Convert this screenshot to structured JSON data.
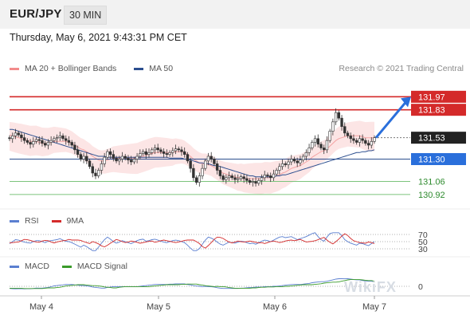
{
  "header": {
    "pair": "EUR/JPY",
    "timeframe": "30 MIN"
  },
  "timestamp": "Thursday, May 6, 2021 9:43:31 PM CET",
  "credit": "Research © 2021 Trading Central",
  "legends": {
    "price": [
      {
        "label": "MA 20 + Bollinger Bands",
        "color": "#f28b8b"
      },
      {
        "label": "MA 50",
        "color": "#2c4f8f"
      }
    ],
    "rsi": [
      {
        "label": "RSI",
        "color": "#5b7fd0"
      },
      {
        "label": "9MA",
        "color": "#d42a2a"
      }
    ],
    "macd": [
      {
        "label": "MACD",
        "color": "#5b7fd0"
      },
      {
        "label": "MACD Signal",
        "color": "#3a9b2a"
      }
    ]
  },
  "watermark": "WikiFX",
  "chart_data": {
    "type": "candlestick",
    "title": "EUR/JPY 30 MIN",
    "x_ticks": [
      "May 4",
      "May 5",
      "May 6",
      "May 7"
    ],
    "ylim": [
      130.85,
      132.05
    ],
    "levels": [
      {
        "value": 131.97,
        "label": "131.97",
        "kind": "resistance"
      },
      {
        "value": 131.83,
        "label": "131.83",
        "kind": "resistance"
      },
      {
        "value": 131.53,
        "label": "131.53",
        "kind": "last_price"
      },
      {
        "value": 131.3,
        "label": "131.30",
        "kind": "pivot"
      },
      {
        "value": 131.06,
        "label": "131.06",
        "kind": "support"
      },
      {
        "value": 130.92,
        "label": "130.92",
        "kind": "support"
      }
    ],
    "price_closes": [
      131.52,
      131.55,
      131.58,
      131.56,
      131.53,
      131.5,
      131.48,
      131.46,
      131.49,
      131.51,
      131.5,
      131.47,
      131.45,
      131.48,
      131.5,
      131.52,
      131.53,
      131.55,
      131.52,
      131.5,
      131.48,
      131.45,
      131.4,
      131.35,
      131.3,
      131.33,
      131.28,
      131.22,
      131.15,
      131.12,
      131.18,
      131.25,
      131.32,
      131.38,
      131.35,
      131.31,
      131.28,
      131.3,
      131.33,
      131.31,
      131.29,
      131.27,
      131.3,
      131.33,
      131.36,
      131.38,
      131.35,
      131.37,
      131.4,
      131.42,
      131.4,
      131.38,
      131.36,
      131.35,
      131.37,
      131.39,
      131.41,
      131.4,
      131.38,
      131.35,
      131.28,
      131.2,
      131.1,
      131.05,
      131.12,
      131.2,
      131.28,
      131.33,
      131.3,
      131.25,
      131.18,
      131.12,
      131.08,
      131.1,
      131.12,
      131.1,
      131.08,
      131.09,
      131.11,
      131.09,
      131.07,
      131.05,
      131.06,
      131.04,
      131.07,
      131.1,
      131.13,
      131.12,
      131.1,
      131.14,
      131.18,
      131.22,
      131.25,
      131.24,
      131.27,
      131.3,
      131.28,
      131.26,
      131.29,
      131.33,
      131.37,
      131.42,
      131.48,
      131.52,
      131.46,
      131.42,
      131.4,
      131.5,
      131.6,
      131.7,
      131.8,
      131.74,
      131.65,
      131.58,
      131.55,
      131.52,
      131.5,
      131.48,
      131.52,
      131.5,
      131.47,
      131.45,
      131.49,
      131.53
    ],
    "ma20": [
      131.56,
      131.55,
      131.54,
      131.53,
      131.52,
      131.51,
      131.5,
      131.49,
      131.49,
      131.49,
      131.48,
      131.47,
      131.47,
      131.47,
      131.48,
      131.49,
      131.49,
      131.49,
      131.49,
      131.49,
      131.48,
      131.47,
      131.45,
      131.43,
      131.41,
      131.4,
      131.38,
      131.36,
      131.33,
      131.31,
      131.29,
      131.28,
      131.28,
      131.29,
      131.3,
      131.31,
      131.31,
      131.31,
      131.31,
      131.31,
      131.31,
      131.31,
      131.31,
      131.31,
      131.32,
      131.33,
      131.34,
      131.35,
      131.36,
      131.37,
      131.37,
      131.37,
      131.37,
      131.37,
      131.37,
      131.37,
      131.38,
      131.38,
      131.38,
      131.37,
      131.35,
      131.33,
      131.3,
      131.28,
      131.26,
      131.25,
      131.25,
      131.24,
      131.23,
      131.21,
      131.19,
      131.17,
      131.15,
      131.14,
      131.13,
      131.12,
      131.11,
      131.1,
      131.1,
      131.09,
      131.09,
      131.09,
      131.09,
      131.09,
      131.09,
      131.09,
      131.1,
      131.1,
      131.1,
      131.11,
      131.12,
      131.13,
      131.15,
      131.16,
      131.18,
      131.2,
      131.21,
      131.22,
      131.23,
      131.25,
      131.27,
      131.29,
      131.32,
      131.34,
      131.36,
      131.38,
      131.39,
      131.41,
      131.44,
      131.47,
      131.5,
      131.52,
      131.53,
      131.54,
      131.55,
      131.55,
      131.55,
      131.55,
      131.55,
      131.54,
      131.53,
      131.53,
      131.53,
      131.53
    ],
    "ma50": [
      131.62,
      131.62,
      131.61,
      131.6,
      131.59,
      131.58,
      131.57,
      131.56,
      131.55,
      131.54,
      131.53,
      131.52,
      131.51,
      131.5,
      131.49,
      131.48,
      131.47,
      131.46,
      131.45,
      131.44,
      131.43,
      131.42,
      131.41,
      131.4,
      131.39,
      131.38,
      131.37,
      131.36,
      131.35,
      131.34,
      131.33,
      131.33,
      131.33,
      131.32,
      131.32,
      131.32,
      131.32,
      131.32,
      131.32,
      131.32,
      131.32,
      131.32,
      131.32,
      131.32,
      131.32,
      131.32,
      131.32,
      131.32,
      131.32,
      131.32,
      131.32,
      131.32,
      131.32,
      131.32,
      131.31,
      131.31,
      131.31,
      131.31,
      131.31,
      131.3,
      131.3,
      131.29,
      131.28,
      131.27,
      131.26,
      131.26,
      131.25,
      131.25,
      131.24,
      131.23,
      131.23,
      131.22,
      131.21,
      131.2,
      131.19,
      131.18,
      131.17,
      131.16,
      131.15,
      131.14,
      131.13,
      131.12,
      131.12,
      131.11,
      131.11,
      131.11,
      131.11,
      131.11,
      131.11,
      131.11,
      131.12,
      131.12,
      131.13,
      131.13,
      131.14,
      131.15,
      131.16,
      131.17,
      131.18,
      131.19,
      131.2,
      131.21,
      131.22,
      131.23,
      131.24,
      131.25,
      131.26,
      131.27,
      131.28,
      131.29,
      131.3,
      131.31,
      131.32,
      131.33,
      131.34,
      131.35,
      131.36,
      131.37,
      131.37,
      131.38,
      131.38,
      131.39,
      131.39,
      131.4
    ],
    "forecast_arrow": {
      "from": 131.53,
      "to": 131.97
    },
    "rsi": {
      "levels": [
        70,
        50,
        30
      ],
      "labels": [
        "70",
        "50",
        "30"
      ]
    },
    "macd": {
      "zero_label": "0"
    }
  }
}
